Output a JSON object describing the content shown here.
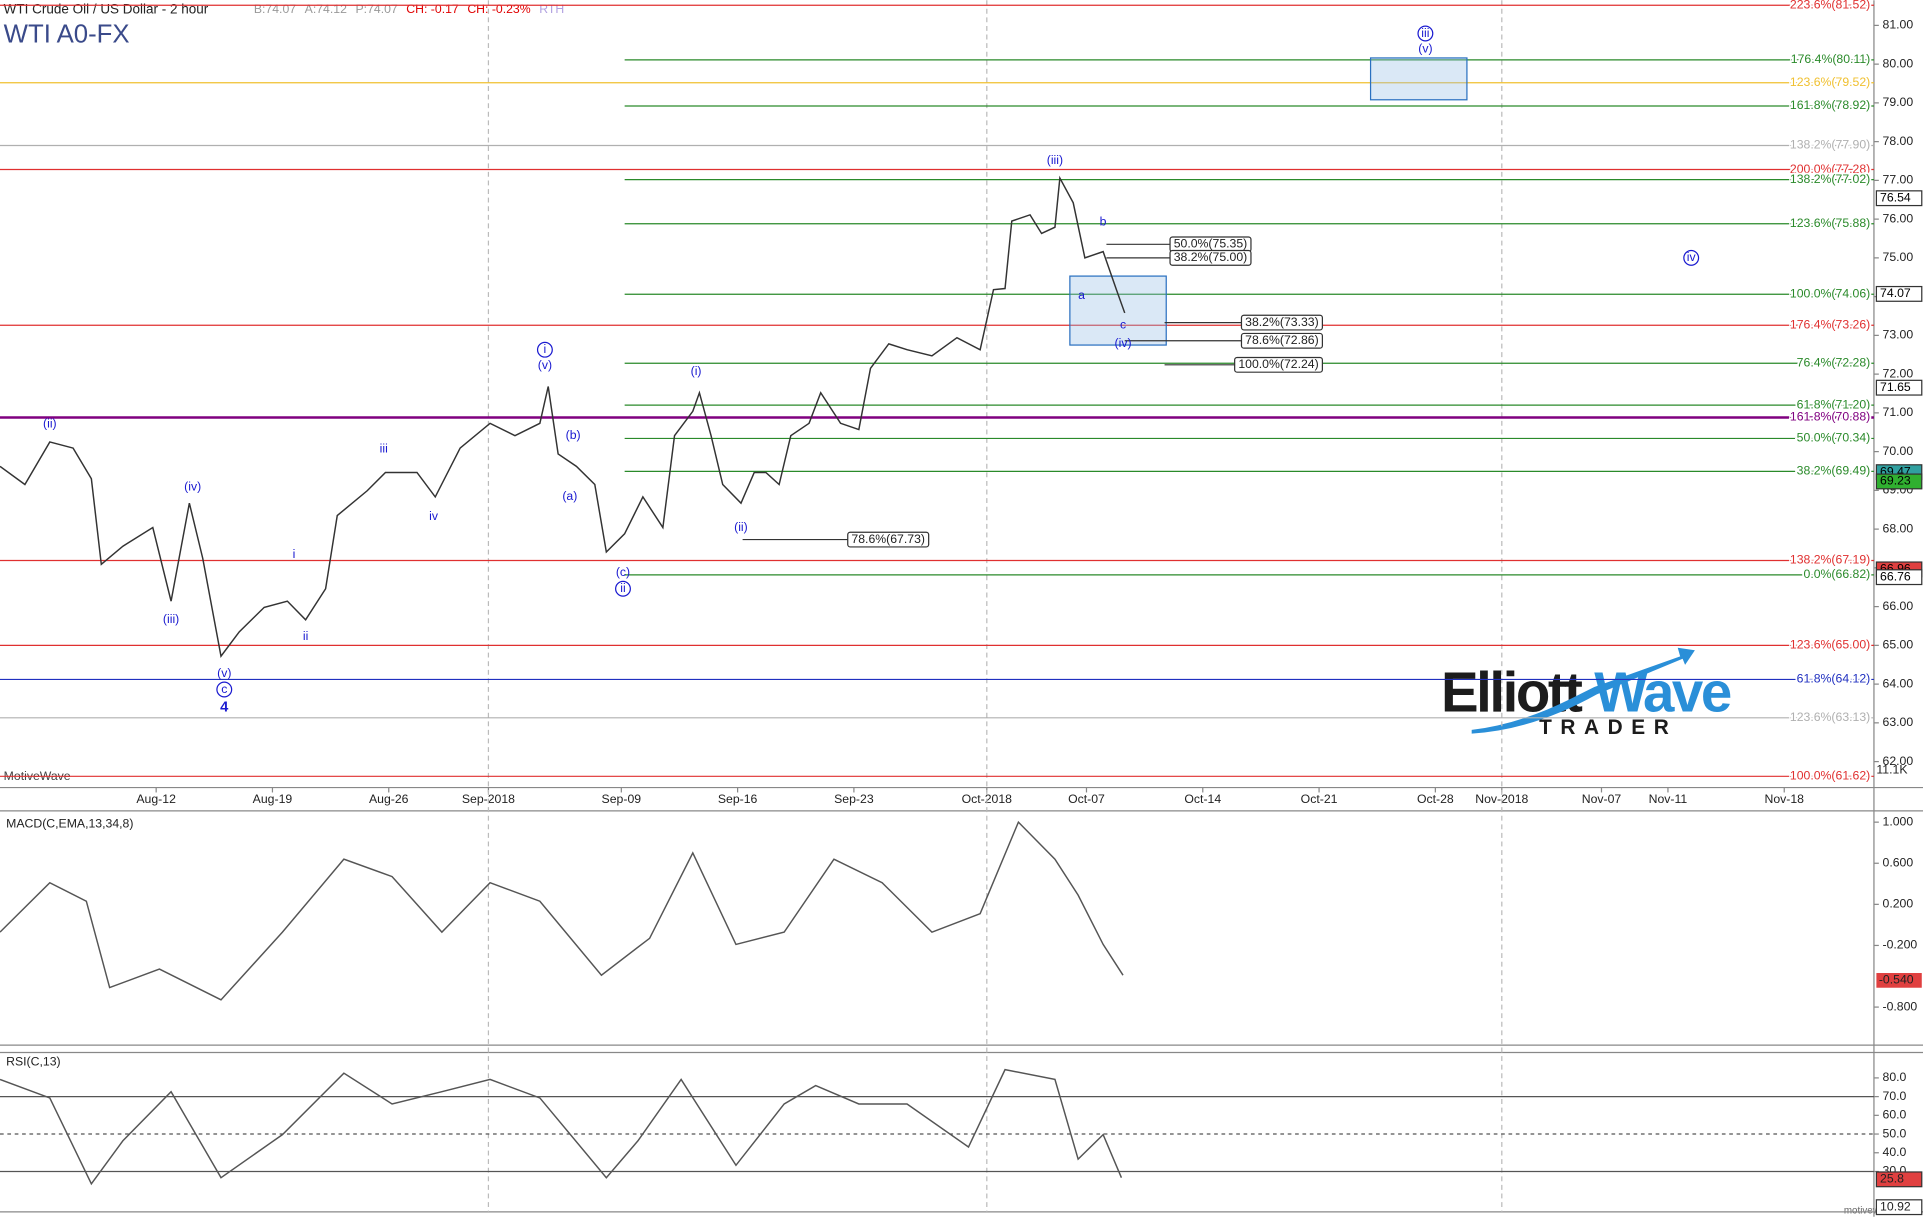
{
  "chart_data": [
    {
      "type": "line",
      "title": "WTI Crude Oil / US Dollar - 2 hour",
      "symbol": "WTI A0-FX",
      "quotes": [
        {
          "text": "B:74.07",
          "color": "#999999"
        },
        {
          "text": "A:74.12",
          "color": "#999999"
        },
        {
          "text": "P:74.07",
          "color": "#999999"
        },
        {
          "text": "CH: -0.17",
          "color": "#e00000"
        },
        {
          "text": "CH: -0.23%",
          "color": "#e00000"
        },
        {
          "text": "RTH",
          "color": "#b0a0e0"
        }
      ],
      "watermark": "MotiveWave",
      "volume_badge": "11.1K",
      "xlim": [
        214.6,
        327.4
      ],
      "xticks": [
        {
          "value": 224,
          "label": "Aug-12"
        },
        {
          "value": 231,
          "label": "Aug-19"
        },
        {
          "value": 238,
          "label": "Aug-26"
        },
        {
          "value": 244,
          "label": "Sep-2018"
        },
        {
          "value": 252,
          "label": "Sep-09"
        },
        {
          "value": 259,
          "label": "Sep-16"
        },
        {
          "value": 266,
          "label": "Sep-23"
        },
        {
          "value": 274,
          "label": "Oct-2018"
        },
        {
          "value": 280,
          "label": "Oct-07"
        },
        {
          "value": 287,
          "label": "Oct-14"
        },
        {
          "value": 294,
          "label": "Oct-21"
        },
        {
          "value": 301,
          "label": "Oct-28"
        },
        {
          "value": 305,
          "label": "Nov-2018"
        },
        {
          "value": 311,
          "label": "Nov-07"
        },
        {
          "value": 315,
          "label": "Nov-11"
        },
        {
          "value": 322,
          "label": "Nov-18"
        }
      ],
      "ylim": [
        61.33,
        81.65
      ],
      "yticks": [
        {
          "value": 62,
          "label": "62.00"
        },
        {
          "value": 63,
          "label": "63.00"
        },
        {
          "value": 64,
          "label": "64.00"
        },
        {
          "value": 65,
          "label": "65.00"
        },
        {
          "value": 66,
          "label": "66.00"
        },
        {
          "value": 67,
          "label": "67.00"
        },
        {
          "value": 68,
          "label": "68.00"
        },
        {
          "value": 69,
          "label": "69.00"
        },
        {
          "value": 70,
          "label": "70.00"
        },
        {
          "value": 71,
          "label": "71.00"
        },
        {
          "value": 72,
          "label": "72.00"
        },
        {
          "value": 73,
          "label": "73.00"
        },
        {
          "value": 74,
          "label": "74.00"
        },
        {
          "value": 75,
          "label": "75.00"
        },
        {
          "value": 76,
          "label": "76.00"
        },
        {
          "value": 77,
          "label": "77.00"
        },
        {
          "value": 78,
          "label": "78.00"
        },
        {
          "value": 79,
          "label": "79.00"
        },
        {
          "value": 80,
          "label": "80.00"
        },
        {
          "value": 81,
          "label": "81.00"
        }
      ],
      "color": "#333333",
      "x": [
        214.6,
        216.1,
        217.6,
        219.0,
        220.1,
        220.7,
        222.0,
        223.8,
        224.9,
        226.0,
        226.8,
        227.9,
        229.0,
        230.5,
        231.9,
        233.0,
        234.2,
        234.9,
        236.7,
        237.8,
        239.7,
        240.8,
        242.3,
        244.1,
        245.6,
        247.1,
        247.6,
        248.2,
        249.3,
        250.4,
        251.1,
        252.2,
        253.3,
        254.5,
        255.2,
        256.3,
        256.7,
        257.4,
        258.1,
        259.2,
        260.0,
        260.7,
        261.5,
        262.2,
        263.3,
        264.0,
        265.2,
        266.3,
        267.0,
        268.1,
        269.2,
        270.7,
        272.2,
        273.6,
        274.4,
        275.1,
        275.5,
        276.6,
        277.3,
        278.1,
        278.4,
        279.2,
        279.9,
        281.0,
        281.8,
        282.3
      ],
      "values": [
        69.62,
        69.15,
        70.25,
        70.09,
        69.3,
        67.09,
        67.56,
        68.04,
        66.14,
        68.67,
        67.25,
        64.72,
        65.35,
        65.98,
        66.14,
        65.66,
        66.46,
        68.35,
        68.99,
        69.46,
        69.46,
        68.83,
        70.09,
        70.73,
        70.41,
        70.73,
        71.68,
        69.94,
        69.62,
        69.15,
        67.41,
        67.88,
        68.83,
        68.04,
        70.41,
        71.04,
        71.52,
        70.41,
        69.15,
        68.67,
        69.46,
        69.46,
        69.15,
        70.41,
        70.73,
        71.52,
        70.73,
        70.57,
        72.15,
        72.78,
        72.63,
        72.47,
        72.94,
        72.63,
        74.18,
        74.21,
        75.95,
        76.11,
        75.63,
        75.79,
        77.06,
        76.42,
        75.0,
        75.16,
        74.18,
        73.58
      ],
      "levels": [
        {
          "label": "223.6%(81.52)",
          "value": 81.52,
          "color": "#e03030",
          "from": null
        },
        {
          "label": "176.4%(80.11)",
          "value": 80.11,
          "color": "#2a8a2a",
          "from": 252.2
        },
        {
          "label": "123.6%(79.52)",
          "value": 79.52,
          "color": "#f0c030",
          "from": null
        },
        {
          "label": "161.8%(78.92)",
          "value": 78.92,
          "color": "#2a8a2a",
          "from": 252.2
        },
        {
          "label": "138.2%(77.90)",
          "value": 77.9,
          "color": "#b0b0b0",
          "from": null
        },
        {
          "label": "200.0%(77.28)",
          "value": 77.28,
          "color": "#e03030",
          "from": null
        },
        {
          "label": "138.2%(77.02)",
          "value": 77.02,
          "color": "#2a8a2a",
          "from": 252.2
        },
        {
          "label": "123.6%(75.88)",
          "value": 75.88,
          "color": "#2a8a2a",
          "from": 252.2
        },
        {
          "label": "100.0%(74.06)",
          "value": 74.06,
          "color": "#2a8a2a",
          "from": 252.2
        },
        {
          "label": "176.4%(73.26)",
          "value": 73.26,
          "color": "#e03030",
          "from": null
        },
        {
          "label": "76.4%(72.28)",
          "value": 72.28,
          "color": "#2a8a2a",
          "from": 252.2
        },
        {
          "label": "61.8%(71.20)",
          "value": 71.2,
          "color": "#2a8a2a",
          "from": 252.2
        },
        {
          "label": "161.8%(70.88)",
          "value": 70.88,
          "color": "#800080",
          "from": null
        },
        {
          "label": "50.0%(70.34)",
          "value": 70.34,
          "color": "#2a8a2a",
          "from": 252.2
        },
        {
          "label": "38.2%(69.49)",
          "value": 69.49,
          "color": "#2a8a2a",
          "from": 252.2
        },
        {
          "label": "138.2%(67.19)",
          "value": 67.19,
          "color": "#e03030",
          "from": null
        },
        {
          "label": "0.0%(66.82)",
          "value": 66.82,
          "color": "#2a8a2a",
          "from": 252.2
        },
        {
          "label": "123.6%(65.00)",
          "value": 65.0,
          "color": "#e03030",
          "from": null
        },
        {
          "label": "61.8%(64.12)",
          "value": 64.12,
          "color": "#2030c0",
          "from": null
        },
        {
          "label": "123.6%(63.13)",
          "value": 63.13,
          "color": "#b0b0b0",
          "from": null
        },
        {
          "label": "100.0%(61.62)",
          "value": 61.62,
          "color": "#e03030",
          "from": null
        }
      ],
      "retracements": [
        {
          "label": "50.0%(75.35)",
          "value": 75.35,
          "from": 281.2,
          "to": 289.9
        },
        {
          "label": "38.2%(75.00)",
          "value": 75.0,
          "from": 281.2,
          "to": 289.9
        },
        {
          "label": "38.2%(73.33)",
          "value": 73.33,
          "from": 284.7,
          "to": 294.2
        },
        {
          "label": "78.6%(72.86)",
          "value": 72.86,
          "from": 282.3,
          "to": 294.2
        },
        {
          "label": "100.0%(72.24)",
          "value": 72.24,
          "from": 284.7,
          "to": 294.2
        },
        {
          "label": "78.6%(67.73)",
          "value": 67.73,
          "from": 259.3,
          "to": 270.5
        }
      ],
      "boxes": [
        {
          "x0": 297.1,
          "x1": 302.9,
          "y0": 79.08,
          "y1": 80.16
        },
        {
          "x0": 279.0,
          "x1": 284.8,
          "y0": 72.75,
          "y1": 74.53
        }
      ],
      "waves": [
        {
          "text": "(ii)",
          "x": 217.6,
          "y": 70.7
        },
        {
          "text": "(iii)",
          "x": 224.9,
          "y": 65.66
        },
        {
          "text": "(iv)",
          "x": 226.2,
          "y": 69.08
        },
        {
          "text": "(v)",
          "x": 228.1,
          "y": 64.27
        },
        {
          "text": "c",
          "x": 228.1,
          "y": 63.86,
          "circled": true
        },
        {
          "text": "4",
          "x": 228.1,
          "y": 63.39,
          "bold": true
        },
        {
          "text": "i",
          "x": 232.3,
          "y": 67.34
        },
        {
          "text": "ii",
          "x": 233.0,
          "y": 65.22
        },
        {
          "text": "iii",
          "x": 237.7,
          "y": 70.06
        },
        {
          "text": "iv",
          "x": 240.7,
          "y": 68.32
        },
        {
          "text": "i",
          "x": 247.4,
          "y": 72.63,
          "circled": true
        },
        {
          "text": "(v)",
          "x": 247.4,
          "y": 72.22
        },
        {
          "text": "(b)",
          "x": 249.1,
          "y": 70.41
        },
        {
          "text": "(a)",
          "x": 248.9,
          "y": 68.83
        },
        {
          "text": "(c)",
          "x": 252.1,
          "y": 66.87
        },
        {
          "text": "ii",
          "x": 252.1,
          "y": 66.46,
          "circled": true
        },
        {
          "text": "(i)",
          "x": 256.5,
          "y": 72.06
        },
        {
          "text": "(ii)",
          "x": 259.2,
          "y": 68.04
        },
        {
          "text": "(iii)",
          "x": 278.1,
          "y": 77.5
        },
        {
          "text": "b",
          "x": 281.0,
          "y": 75.92
        },
        {
          "text": "a",
          "x": 279.7,
          "y": 74.02
        },
        {
          "text": "c",
          "x": 282.2,
          "y": 73.26
        },
        {
          "text": "(iv)",
          "x": 282.2,
          "y": 72.78
        },
        {
          "text": "iii",
          "x": 300.4,
          "y": 80.79,
          "circled": true
        },
        {
          "text": "(v)",
          "x": 300.4,
          "y": 80.38
        },
        {
          "text": "iv",
          "x": 316.4,
          "y": 75.0,
          "circled": true
        }
      ],
      "badges": [
        {
          "value": 76.54,
          "bg": "#ffffff",
          "fg": "#000000"
        },
        {
          "value": 74.07,
          "bg": "#ffffff",
          "fg": "#000000"
        },
        {
          "value": 71.65,
          "bg": "#ffffff",
          "fg": "#000000"
        },
        {
          "value": 69.47,
          "bg": "#30a0a0",
          "fg": "#000000"
        },
        {
          "value": 69.23,
          "bg": "#30b030",
          "fg": "#000000"
        },
        {
          "value": 66.96,
          "bg": "#e04040",
          "fg": "#000000"
        },
        {
          "value": 66.76,
          "bg": "#ffffff",
          "fg": "#000000"
        }
      ]
    },
    {
      "type": "line",
      "title": "MACD(C,EMA,13,34,8)",
      "color": "#555555",
      "ylim": [
        -1.17,
        1.11
      ],
      "yticks": [
        {
          "value": 1,
          "label": "1.000"
        },
        {
          "value": 0.6,
          "label": "0.600"
        },
        {
          "value": 0.2,
          "label": "0.200"
        },
        {
          "value": -0.2,
          "label": "-0.200"
        },
        {
          "value": -0.8,
          "label": "-0.800"
        }
      ],
      "x": [
        214.6,
        217.6,
        219.8,
        221.2,
        224.2,
        227.9,
        231.6,
        235.3,
        238.2,
        241.2,
        244.1,
        247.1,
        250.8,
        253.7,
        256.3,
        258.9,
        261.8,
        264.8,
        267.7,
        270.7,
        273.6,
        275.9,
        278.1,
        279.5,
        281.0,
        282.2
      ],
      "values": [
        -0.07,
        0.41,
        0.23,
        -0.61,
        -0.43,
        -0.73,
        -0.07,
        0.64,
        0.47,
        -0.07,
        0.41,
        0.23,
        -0.49,
        -0.13,
        0.7,
        -0.19,
        -0.07,
        0.64,
        0.41,
        -0.07,
        0.11,
        1.0,
        0.64,
        0.29,
        -0.19,
        -0.49
      ],
      "badge": {
        "value": -0.54,
        "label": "-0.540"
      }
    },
    {
      "type": "line",
      "title": "RSI(C,13)",
      "color": "#555555",
      "ylim": [
        8.4,
        93.6
      ],
      "yticks": [
        {
          "value": 80,
          "label": "80.0"
        },
        {
          "value": 70,
          "label": "70.0"
        },
        {
          "value": 60,
          "label": "60.0"
        },
        {
          "value": 50,
          "label": "50.0"
        },
        {
          "value": 40,
          "label": "40.0"
        },
        {
          "value": 30,
          "label": "30.0"
        }
      ],
      "ref_lines": [
        70,
        50,
        30
      ],
      "x": [
        214.6,
        217.6,
        220.1,
        222.0,
        224.9,
        227.9,
        231.6,
        235.3,
        238.2,
        241.2,
        244.1,
        247.1,
        251.1,
        253.0,
        255.6,
        258.9,
        261.8,
        263.7,
        266.3,
        269.2,
        272.9,
        275.1,
        278.1,
        279.5,
        281.0,
        282.1
      ],
      "values": [
        79.2,
        69.3,
        23.4,
        46.4,
        72.6,
        26.7,
        49.7,
        82.5,
        66.1,
        72.6,
        79.2,
        69.3,
        26.7,
        46.4,
        79.2,
        33.3,
        66.1,
        75.9,
        66.1,
        66.1,
        43.1,
        84.4,
        79.2,
        36.6,
        49.7,
        26.7
      ],
      "badges": [
        {
          "value": 25.8,
          "bg": "#e04040"
        },
        {
          "value": 10.92,
          "bg": "#ffffff"
        }
      ]
    }
  ],
  "logo": {
    "part1": "Elliott",
    "part2": "Wave",
    "part3": "TRADER"
  },
  "footer": "motivewave.com"
}
